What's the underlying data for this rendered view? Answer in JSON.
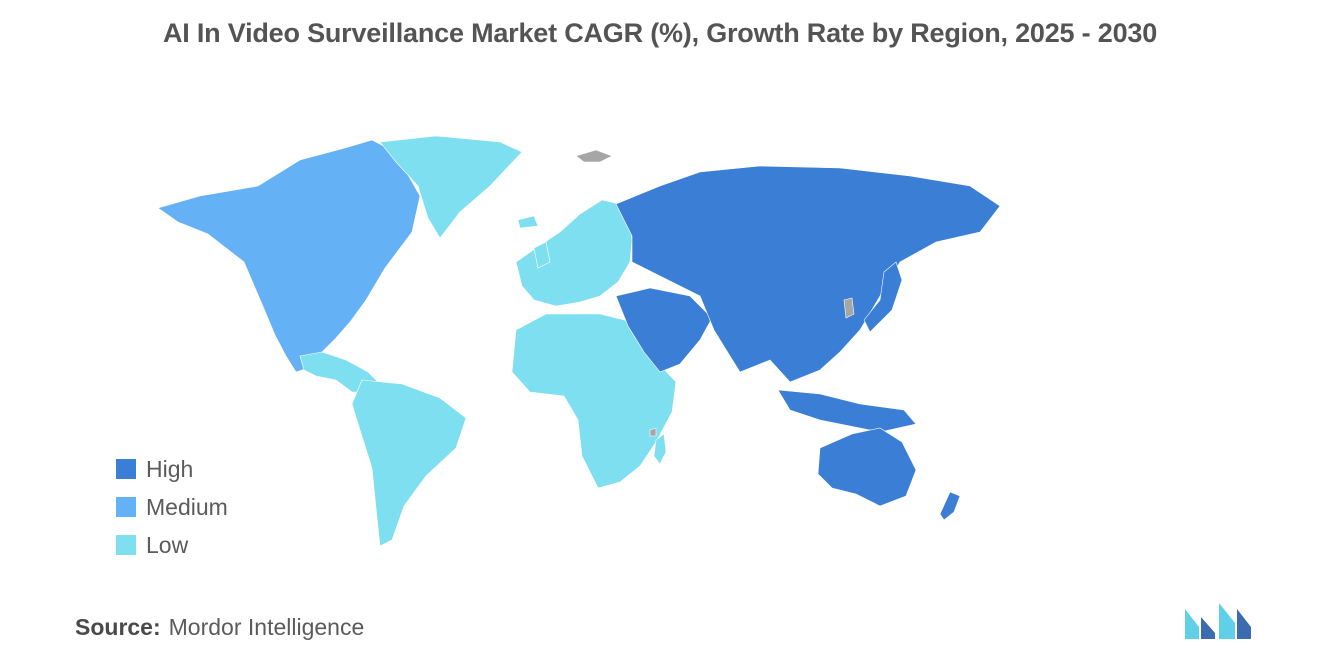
{
  "title": "AI In Video Surveillance Market CAGR (%), Growth Rate by Region, 2025 - 2030",
  "colors": {
    "high": "#3a7fd5",
    "medium": "#65b1f5",
    "low": "#7ddff0",
    "no_data": "#a6a6a6",
    "logo_dark": "#3c6bb0",
    "logo_light": "#5fd0e8"
  },
  "legend": {
    "items": [
      {
        "key": "high",
        "label": "High"
      },
      {
        "key": "medium",
        "label": "Medium"
      },
      {
        "key": "low",
        "label": "Low"
      }
    ]
  },
  "regions": [
    {
      "name": "North America",
      "level": "medium"
    },
    {
      "name": "Europe",
      "level": "low"
    },
    {
      "name": "Asia Pacific",
      "level": "high"
    },
    {
      "name": "Middle East",
      "level": "high"
    },
    {
      "name": "Latin America",
      "level": "low"
    },
    {
      "name": "Africa",
      "level": "low"
    },
    {
      "name": "Greenland",
      "level": "low"
    }
  ],
  "source": {
    "key": "Source:",
    "value": "Mordor Intelligence"
  },
  "logo": {
    "name": "mordor-intelligence-logo"
  }
}
